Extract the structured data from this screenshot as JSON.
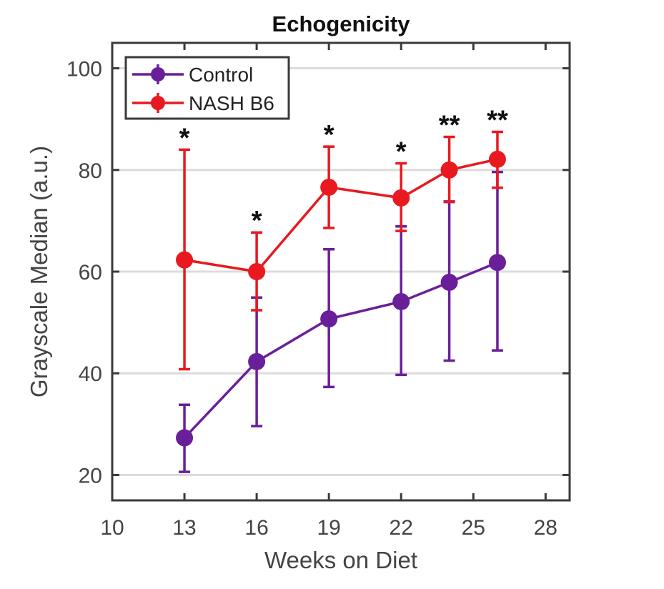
{
  "chart_data": {
    "type": "line",
    "title": "Echogenicity",
    "xlabel": "Weeks on Diet",
    "ylabel": "Grayscale Median (a.u.)",
    "xlim": [
      10,
      29
    ],
    "ylim": [
      15,
      105
    ],
    "xticks": [
      10,
      13,
      16,
      19,
      22,
      25,
      28
    ],
    "yticks": [
      20,
      40,
      60,
      80,
      100
    ],
    "grid": "horizontal",
    "legend_position": "top-left",
    "x": [
      13,
      16,
      19,
      22,
      24,
      26
    ],
    "series": [
      {
        "name": "Control",
        "color": "#6a1f9a",
        "values": [
          27.3,
          42.3,
          50.7,
          54.1,
          57.9,
          61.8
        ],
        "err_upper": [
          33.8,
          54.9,
          64.4,
          68.9,
          73.8,
          79.6
        ],
        "err_lower": [
          20.6,
          29.6,
          37.3,
          39.7,
          42.5,
          44.5
        ]
      },
      {
        "name": "NASH B6",
        "color": "#e8191f",
        "values": [
          62.3,
          60.0,
          76.6,
          74.5,
          80.0,
          82.1
        ],
        "err_upper": [
          84.0,
          67.7,
          84.6,
          81.3,
          86.5,
          87.5
        ],
        "err_lower": [
          40.8,
          52.4,
          68.6,
          68.0,
          73.7,
          76.5
        ]
      }
    ],
    "annotations": [
      "*",
      "*",
      "*",
      "*",
      "**",
      "**"
    ]
  }
}
